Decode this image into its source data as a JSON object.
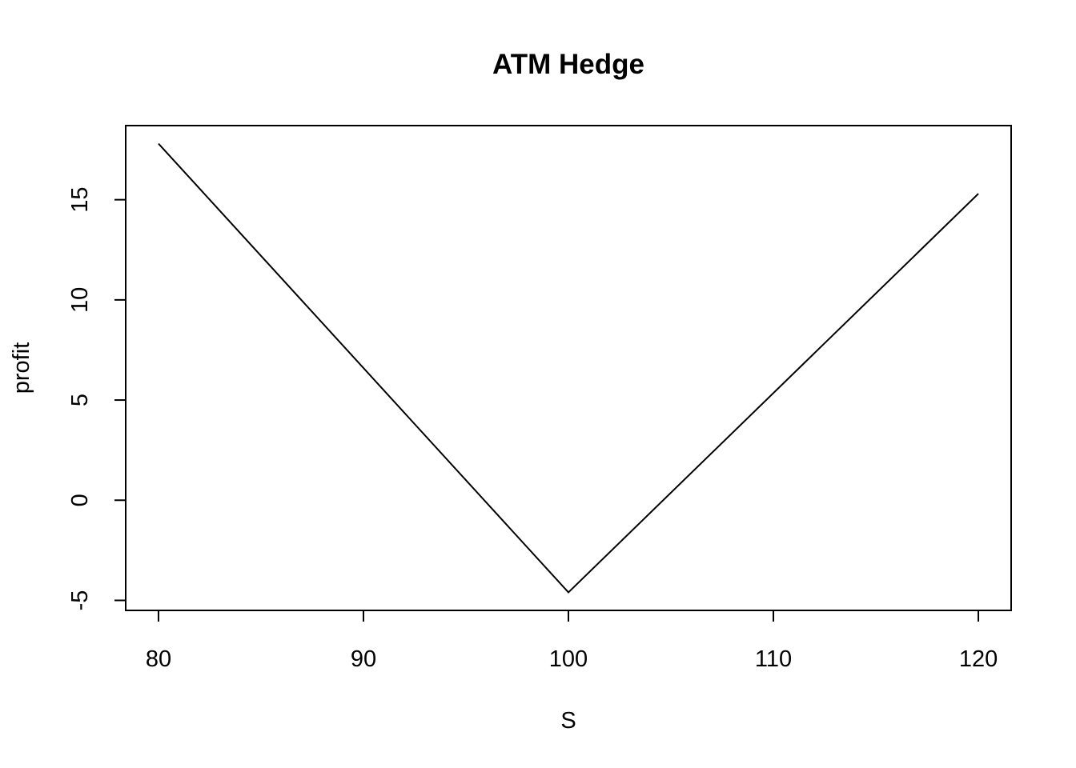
{
  "chart_data": {
    "type": "line",
    "title": "ATM Hedge",
    "xlabel": "S",
    "ylabel": "profit",
    "xlim": [
      78.4,
      121.6
    ],
    "ylim": [
      -5.5,
      18.7
    ],
    "x_ticks": [
      80,
      90,
      100,
      110,
      120
    ],
    "y_ticks": [
      -5,
      0,
      5,
      10,
      15
    ],
    "grid": false,
    "legend": "none",
    "line_color": "#000000",
    "series": [
      {
        "x": [
          80,
          100,
          120
        ],
        "y": [
          17.8,
          -4.6,
          15.3
        ]
      }
    ]
  }
}
